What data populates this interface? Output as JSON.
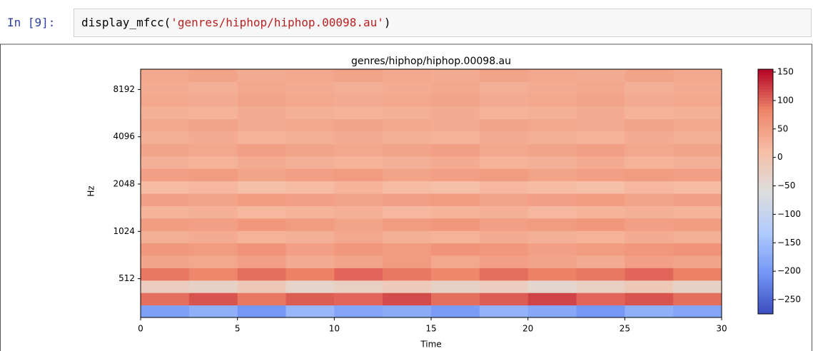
{
  "cell": {
    "prompt": "In [9]:",
    "code": [
      "display_mfcc(",
      "'genres/hiphop/hiphop.00098.au'",
      ")"
    ]
  },
  "chart_data": {
    "type": "heatmap",
    "title": "genres/hiphop/hiphop.00098.au",
    "xlabel": "Time",
    "ylabel": "Hz",
    "xlim": [
      0,
      30
    ],
    "xticks": [
      0,
      5,
      10,
      15,
      20,
      25,
      30
    ],
    "ylim": [
      290,
      11025
    ],
    "yscale": "log2",
    "yticks": [
      512,
      1024,
      2048,
      4096,
      8192
    ],
    "clim": [
      -275,
      155
    ],
    "cticks": [
      150,
      100,
      50,
      0,
      {
        "value": -50,
        "label": "−50"
      },
      {
        "value": -100,
        "label": "−100"
      },
      {
        "value": -150,
        "label": "−150"
      },
      {
        "value": -200,
        "label": "−200"
      },
      {
        "value": -250,
        "label": "−250"
      }
    ],
    "colormap": [
      "#3b4cc0",
      "#7396f5",
      "#b0cbfc",
      "#dddddd",
      "#f6bfa6",
      "#ee8468",
      "#b40426"
    ],
    "z": [
      [
        -190,
        -170,
        -200,
        -160,
        -185,
        -175,
        -195,
        -165,
        -180,
        -200,
        -170,
        -185
      ],
      [
        95,
        110,
        90,
        105,
        100,
        115,
        95,
        105,
        120,
        100,
        110,
        95
      ],
      [
        -20,
        -30,
        -10,
        -35,
        -25,
        -15,
        -30,
        -20,
        -40,
        -25,
        -10,
        -30
      ],
      [
        90,
        80,
        95,
        85,
        100,
        90,
        80,
        95,
        85,
        90,
        100,
        85
      ],
      [
        45,
        40,
        50,
        35,
        45,
        55,
        40,
        50,
        45,
        35,
        50,
        45
      ],
      [
        60,
        55,
        65,
        50,
        60,
        55,
        65,
        60,
        50,
        55,
        60,
        65
      ],
      [
        30,
        35,
        25,
        30,
        40,
        30,
        25,
        35,
        30,
        25,
        35,
        30
      ],
      [
        55,
        50,
        60,
        55,
        45,
        55,
        60,
        50,
        55,
        60,
        50,
        55
      ],
      [
        25,
        30,
        20,
        25,
        30,
        20,
        25,
        30,
        20,
        25,
        30,
        25
      ],
      [
        50,
        45,
        55,
        50,
        45,
        50,
        55,
        45,
        50,
        55,
        45,
        50
      ],
      [
        15,
        20,
        10,
        15,
        25,
        15,
        10,
        20,
        15,
        10,
        20,
        15
      ],
      [
        50,
        55,
        45,
        50,
        55,
        45,
        50,
        55,
        45,
        50,
        55,
        50
      ],
      [
        30,
        25,
        35,
        30,
        25,
        30,
        35,
        25,
        30,
        35,
        25,
        30
      ],
      [
        45,
        40,
        50,
        45,
        40,
        45,
        50,
        40,
        45,
        50,
        40,
        45
      ],
      [
        30,
        35,
        25,
        30,
        35,
        30,
        25,
        35,
        30,
        25,
        35,
        30
      ],
      [
        40,
        45,
        35,
        40,
        45,
        40,
        35,
        45,
        40,
        35,
        45,
        40
      ],
      [
        30,
        25,
        35,
        30,
        25,
        30,
        35,
        25,
        30,
        35,
        25,
        30
      ],
      [
        40,
        35,
        45,
        40,
        35,
        40,
        45,
        35,
        40,
        45,
        35,
        40
      ],
      [
        35,
        30,
        40,
        35,
        30,
        35,
        40,
        30,
        35,
        40,
        30,
        35
      ],
      [
        40,
        45,
        35,
        40,
        45,
        40,
        35,
        45,
        40,
        35,
        45,
        40
      ]
    ]
  }
}
